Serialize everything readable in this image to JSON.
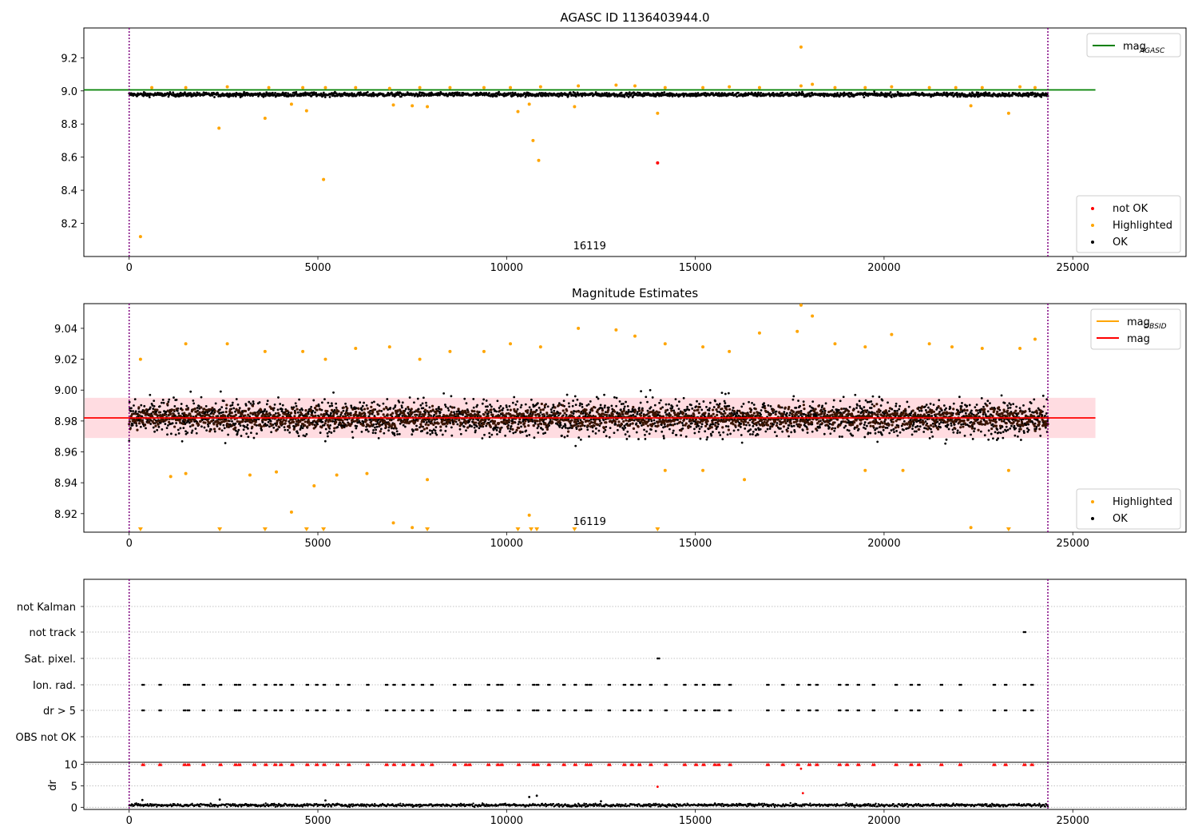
{
  "chart_data": [
    {
      "type": "scatter",
      "title": "AGASC ID 1136403944.0",
      "xlim": [
        -1200,
        28000
      ],
      "ylim": [
        8.0,
        9.38
      ],
      "x_ticks": [
        0,
        5000,
        10000,
        15000,
        20000,
        25000
      ],
      "y_ticks": [
        8.2,
        8.4,
        8.6,
        8.8,
        9.0,
        9.2
      ],
      "y_tick_labels": [
        "8.2",
        "8.4",
        "8.6",
        "8.8",
        "9.0",
        "9.2"
      ],
      "vlines": [
        0,
        24340
      ],
      "annotation": {
        "text": "16119",
        "x": 12200
      },
      "band": {
        "x_range": [
          0,
          24340
        ],
        "center": 8.978,
        "spread": 0.012,
        "dense_count": 1800
      },
      "reference_line": {
        "label": "mag_AGASC",
        "value": 9.006,
        "x_range": [
          -1200,
          25600
        ],
        "color": "#008000"
      },
      "legend_top": {
        "position": "top-right",
        "entries": [
          {
            "label": "mag",
            "sub": "AGASC",
            "color": "#008000",
            "kind": "line"
          }
        ]
      },
      "legend_bottom": {
        "position": "bottom-right",
        "entries": [
          {
            "label": "not OK",
            "color": "#ff0000",
            "kind": "dot"
          },
          {
            "label": "Highlighted",
            "color": "#ffa500",
            "kind": "dot"
          },
          {
            "label": "OK",
            "color": "#000000",
            "kind": "dot"
          }
        ]
      },
      "series": [
        {
          "name": "not OK",
          "color": "#ff0000",
          "points": [
            [
              14000,
              8.565
            ]
          ]
        },
        {
          "name": "Highlighted",
          "color": "#ffa500",
          "points": [
            [
              300,
              8.12
            ],
            [
              2380,
              8.775
            ],
            [
              3600,
              8.835
            ],
            [
              4300,
              8.92
            ],
            [
              4700,
              8.88
            ],
            [
              5150,
              8.465
            ],
            [
              7000,
              8.915
            ],
            [
              7500,
              8.91
            ],
            [
              7900,
              8.905
            ],
            [
              10300,
              8.875
            ],
            [
              10600,
              8.92
            ],
            [
              10700,
              8.7
            ],
            [
              10850,
              8.58
            ],
            [
              11800,
              8.905
            ],
            [
              14000,
              8.865
            ],
            [
              17800,
              9.265
            ],
            [
              22300,
              8.91
            ],
            [
              23300,
              8.865
            ],
            [
              600,
              9.02
            ],
            [
              1500,
              9.02
            ],
            [
              2600,
              9.025
            ],
            [
              3700,
              9.02
            ],
            [
              4600,
              9.02
            ],
            [
              5200,
              9.02
            ],
            [
              6000,
              9.02
            ],
            [
              6900,
              9.015
            ],
            [
              7700,
              9.02
            ],
            [
              8500,
              9.02
            ],
            [
              9400,
              9.02
            ],
            [
              10100,
              9.02
            ],
            [
              10900,
              9.025
            ],
            [
              11900,
              9.03
            ],
            [
              12900,
              9.035
            ],
            [
              13400,
              9.03
            ],
            [
              14200,
              9.02
            ],
            [
              15200,
              9.02
            ],
            [
              15900,
              9.025
            ],
            [
              16700,
              9.02
            ],
            [
              17800,
              9.03
            ],
            [
              18100,
              9.04
            ],
            [
              18700,
              9.02
            ],
            [
              19500,
              9.02
            ],
            [
              20200,
              9.025
            ],
            [
              21200,
              9.02
            ],
            [
              21900,
              9.02
            ],
            [
              22600,
              9.02
            ],
            [
              23600,
              9.025
            ],
            [
              24000,
              9.02
            ]
          ]
        }
      ]
    },
    {
      "type": "scatter",
      "title": "Magnitude Estimates",
      "xlim": [
        -1200,
        28000
      ],
      "ylim": [
        8.908,
        9.056
      ],
      "x_ticks": [
        0,
        5000,
        10000,
        15000,
        20000,
        25000
      ],
      "y_ticks": [
        8.92,
        8.94,
        8.96,
        8.98,
        9.0,
        9.02,
        9.04
      ],
      "y_tick_labels": [
        "8.92",
        "8.94",
        "8.96",
        "8.98",
        "9.00",
        "9.02",
        "9.04"
      ],
      "vlines": [
        0,
        24340
      ],
      "annotation": {
        "text": "16119",
        "x": 12200
      },
      "band": {
        "x_range": [
          0,
          24340
        ],
        "center": 8.982,
        "spread": 0.012,
        "dense_count": 2600
      },
      "reference_line": {
        "label": "mag",
        "value": 8.982,
        "x_range": [
          -1200,
          25600
        ],
        "color": "#ff0000"
      },
      "shaded_range": [
        8.969,
        8.995
      ],
      "legend_top": {
        "position": "top-right",
        "entries": [
          {
            "label": "mag",
            "sub": "OBSID",
            "color": "#ffa500",
            "kind": "line"
          },
          {
            "label": "mag",
            "sub": "",
            "color": "#ff0000",
            "kind": "line"
          }
        ]
      },
      "legend_bottom": {
        "position": "bottom-right",
        "entries": [
          {
            "label": "Highlighted",
            "color": "#ffa500",
            "kind": "dot"
          },
          {
            "label": "OK",
            "color": "#000000",
            "kind": "dot"
          }
        ]
      },
      "series": [
        {
          "name": "Highlighted",
          "color": "#ffa500",
          "points": [
            [
              300,
              9.02
            ],
            [
              1500,
              9.03
            ],
            [
              2600,
              9.03
            ],
            [
              3600,
              9.025
            ],
            [
              4600,
              9.025
            ],
            [
              5200,
              9.02
            ],
            [
              6000,
              9.027
            ],
            [
              6900,
              9.028
            ],
            [
              7700,
              9.02
            ],
            [
              8500,
              9.025
            ],
            [
              9400,
              9.025
            ],
            [
              10100,
              9.03
            ],
            [
              10900,
              9.028
            ],
            [
              11900,
              9.04
            ],
            [
              12900,
              9.039
            ],
            [
              13400,
              9.035
            ],
            [
              14200,
              9.03
            ],
            [
              15200,
              9.028
            ],
            [
              15900,
              9.025
            ],
            [
              16700,
              9.037
            ],
            [
              17700,
              9.038
            ],
            [
              17800,
              9.055
            ],
            [
              18100,
              9.048
            ],
            [
              18700,
              9.03
            ],
            [
              19500,
              9.028
            ],
            [
              20200,
              9.036
            ],
            [
              21200,
              9.03
            ],
            [
              21800,
              9.028
            ],
            [
              22600,
              9.027
            ],
            [
              23600,
              9.027
            ],
            [
              24000,
              9.033
            ],
            [
              1100,
              8.944
            ],
            [
              1500,
              8.946
            ],
            [
              3200,
              8.945
            ],
            [
              3900,
              8.947
            ],
            [
              4300,
              8.921
            ],
            [
              4900,
              8.938
            ],
            [
              5500,
              8.945
            ],
            [
              6300,
              8.946
            ],
            [
              7000,
              8.914
            ],
            [
              7500,
              8.911
            ],
            [
              7900,
              8.942
            ],
            [
              10600,
              8.919
            ],
            [
              14200,
              8.948
            ],
            [
              15200,
              8.948
            ],
            [
              16300,
              8.942
            ],
            [
              19500,
              8.948
            ],
            [
              20500,
              8.948
            ],
            [
              22300,
              8.911
            ],
            [
              23300,
              8.948
            ]
          ]
        },
        {
          "name": "Highlighted (off-scale)",
          "color": "#ffa500",
          "points": [
            [
              300,
              8.909
            ],
            [
              2400,
              8.909
            ],
            [
              3600,
              8.909
            ],
            [
              4700,
              8.909
            ],
            [
              5150,
              8.909
            ],
            [
              7900,
              8.909
            ],
            [
              10300,
              8.909
            ],
            [
              10650,
              8.909
            ],
            [
              10800,
              8.909
            ],
            [
              11800,
              8.909
            ],
            [
              14000,
              8.909
            ],
            [
              23300,
              8.909
            ]
          ]
        }
      ]
    },
    {
      "type": "scatter",
      "title": "",
      "xlim": [
        -1200,
        28000
      ],
      "categories": [
        "not Kalman",
        "not track",
        "Sat. pixel.",
        "Ion. rad.",
        "dr > 5",
        "OBS not OK"
      ],
      "vlines": [
        0,
        24340
      ],
      "flags": {
        "not track": [
          23700
        ],
        "Sat. pixel.": [
          14000
        ],
        "Ion. rad.": [
          350,
          800,
          1450,
          1550,
          1950,
          2400,
          2800,
          2900,
          3300,
          3600,
          3850,
          4000,
          4300,
          4700,
          4950,
          5150,
          5500,
          5800,
          6300,
          6800,
          7000,
          7250,
          7500,
          7750,
          8000,
          8600,
          8900,
          9000,
          9500,
          9750,
          9850,
          10300,
          10700,
          10800,
          11100,
          11500,
          11800,
          12100,
          12200,
          12700,
          13100,
          13300,
          13500,
          13800,
          14200,
          14700,
          15000,
          15200,
          15500,
          15600,
          15900,
          16900,
          17300,
          17700,
          18000,
          18200,
          18800,
          19000,
          19300,
          19700,
          20300,
          20700,
          20900,
          21500,
          22000,
          22900,
          23200,
          23700,
          23900
        ],
        "dr > 5": [
          350,
          800,
          1450,
          1550,
          1950,
          2400,
          2800,
          2900,
          3300,
          3600,
          3850,
          4000,
          4300,
          4700,
          4950,
          5150,
          5500,
          5800,
          6300,
          6800,
          7000,
          7250,
          7500,
          7750,
          8000,
          8600,
          8900,
          9000,
          9500,
          9750,
          9850,
          10300,
          10700,
          10800,
          11100,
          11500,
          11800,
          12100,
          12200,
          12700,
          13100,
          13300,
          13500,
          13800,
          14200,
          14700,
          15000,
          15200,
          15500,
          15600,
          15900,
          16900,
          17300,
          17700,
          18000,
          18200,
          18800,
          19000,
          19300,
          19700,
          20300,
          20700,
          20900,
          21500,
          22000,
          22900,
          23200,
          23700,
          23900
        ]
      }
    },
    {
      "type": "scatter",
      "title": "",
      "xlim": [
        -1200,
        28000
      ],
      "ylim": [
        -0.5,
        10.5
      ],
      "ylabel": "dr",
      "x_ticks": [
        0,
        5000,
        10000,
        15000,
        20000,
        25000
      ],
      "y_ticks": [
        0,
        5,
        10
      ],
      "y_tick_labels": [
        "0",
        "5",
        "10"
      ],
      "vlines": [
        0,
        24340
      ],
      "clipped_value": 10,
      "series": [
        {
          "name": "dr > 5 (clipped)",
          "color": "#ff0000",
          "x": [
            350,
            800,
            1450,
            1550,
            1950,
            2400,
            2800,
            2900,
            3300,
            3600,
            3850,
            4000,
            4300,
            4700,
            4950,
            5150,
            5500,
            5800,
            6300,
            6800,
            7000,
            7250,
            7500,
            7750,
            8000,
            8600,
            8900,
            9000,
            9500,
            9750,
            9850,
            10300,
            10700,
            10800,
            11100,
            11500,
            11800,
            12100,
            12200,
            12700,
            13100,
            13300,
            13500,
            13800,
            14200,
            14700,
            15000,
            15200,
            15500,
            15600,
            15900,
            16900,
            17300,
            17700,
            18000,
            18200,
            18800,
            19000,
            19300,
            19700,
            20300,
            20700,
            20900,
            21500,
            22000,
            22900,
            23200,
            23700,
            23900
          ]
        },
        {
          "name": "dr outliers",
          "color": "#ff0000",
          "points": [
            [
              14000,
              4.8
            ],
            [
              17850,
              3.3
            ],
            [
              17800,
              9.0
            ]
          ]
        },
        {
          "name": "dr",
          "color": "#000000",
          "band": {
            "x_range": [
              0,
              24340
            ],
            "center": 0.5,
            "spread": 0.35,
            "dense_count": 1400
          },
          "points": [
            [
              350,
              1.7
            ],
            [
              2400,
              1.8
            ],
            [
              5200,
              1.6
            ],
            [
              10600,
              2.4
            ],
            [
              10800,
              2.7
            ],
            [
              12500,
              1.4
            ]
          ]
        }
      ]
    }
  ]
}
